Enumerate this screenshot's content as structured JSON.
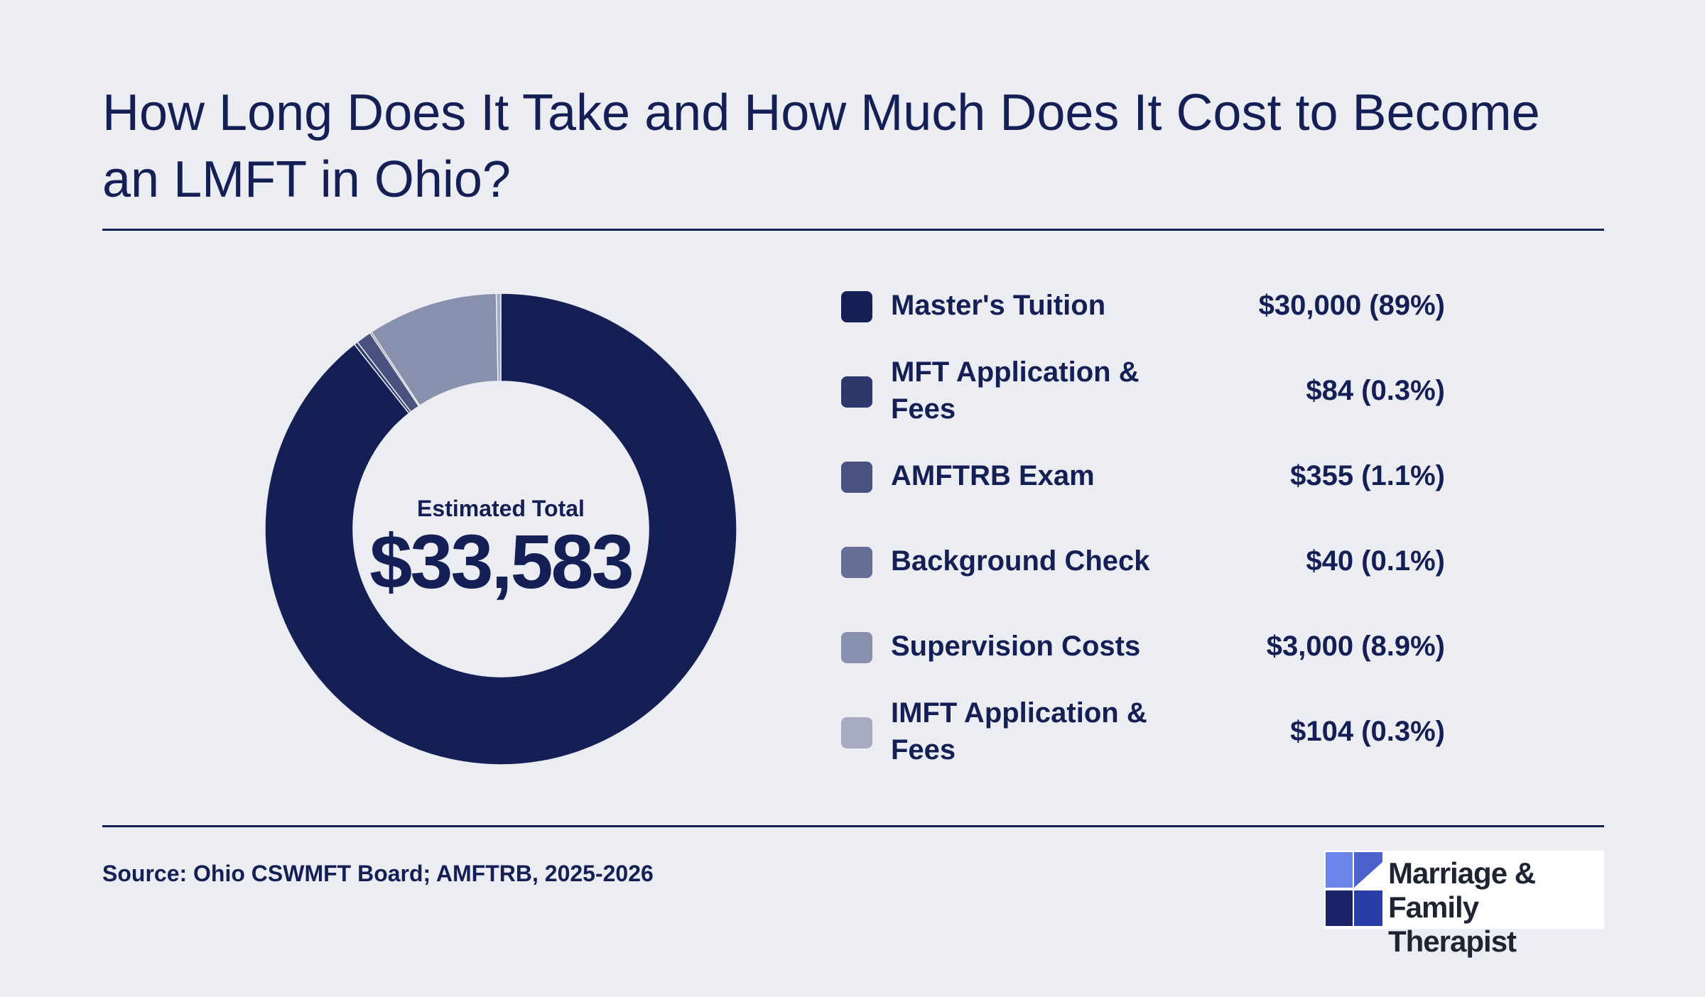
{
  "title": "How Long Does It Take and How Much Does It Cost to Become an LMFT in Ohio?",
  "center": {
    "label": "Estimated Total",
    "value": "$33,583"
  },
  "source": "Source: Ohio CSWMFT Board; AMFTRB, 2025-2026",
  "logo": {
    "line1": "Marriage & Family",
    "line2": "Therapist"
  },
  "chart_data": {
    "type": "pie",
    "donut": true,
    "total": 33583,
    "categories": [
      "Master's Tuition",
      "MFT Application & Fees",
      "AMFTRB Exam",
      "Background Check",
      "Supervision Costs",
      "IMFT Application & Fees"
    ],
    "values": [
      30000,
      84,
      355,
      40,
      3000,
      104
    ],
    "value_labels": [
      "$30,000 (89%)",
      "$84 (0.3%)",
      "$355 (1.1%)",
      "$40 (0.1%)",
      "$3,000 (8.9%)",
      "$104 (0.3%)"
    ],
    "colors": [
      "#141f55",
      "#2e386a",
      "#4a537f",
      "#676e96",
      "#8890ad",
      "#a6abc1"
    ],
    "legend_position": "right"
  }
}
